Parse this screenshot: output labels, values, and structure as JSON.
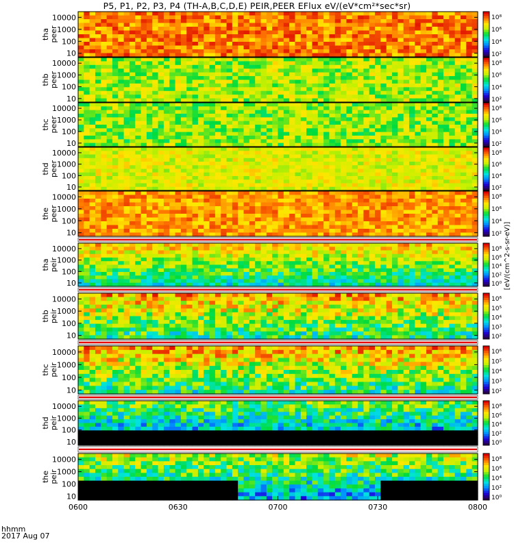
{
  "title": "P5, P1, P2, P3, P4 (TH-A,B,C,D,E) PEIR,PEER EFlux eV/(eV*cm²*sec*sr)",
  "footer": {
    "time_format": "hhmm",
    "date": "2017 Aug 07"
  },
  "colorbar_label": "[eV/(cm^2-s-sr-eV)]",
  "chart_data": {
    "type": "heatmap",
    "x_ticks": [
      "0600",
      "0630",
      "0700",
      "0730",
      "0800"
    ],
    "x_range": [
      "0600",
      "0800"
    ],
    "y_scale": "log",
    "y_ticks": [
      "10",
      "100",
      "1000",
      "10000"
    ],
    "panels": [
      {
        "name": "tha peer",
        "label_lines": [
          "tha",
          "peer"
        ],
        "cbar_ticks": [
          "10⁸",
          "10⁶",
          "10⁴",
          "10²"
        ],
        "base": 0.85,
        "noise": 0.12
      },
      {
        "name": "thb peer",
        "label_lines": [
          "thb",
          "peer"
        ],
        "cbar_ticks": [
          "10⁸",
          "10⁶",
          "10⁴",
          "10²"
        ],
        "base": 0.62,
        "noise": 0.14
      },
      {
        "name": "thc peer",
        "label_lines": [
          "thc",
          "peer"
        ],
        "cbar_ticks": [
          "10⁸",
          "10⁶",
          "10⁴",
          "10²"
        ],
        "base": 0.6,
        "noise": 0.14
      },
      {
        "name": "thd peer",
        "label_lines": [
          "thd",
          "peer"
        ],
        "cbar_ticks": [
          "10⁸",
          "10⁶",
          "10⁴",
          "10²"
        ],
        "base": 0.68,
        "noise": 0.1
      },
      {
        "name": "the peer",
        "label_lines": [
          "the",
          "peer"
        ],
        "cbar_ticks": [
          "10⁸",
          "10⁶",
          "10⁴",
          "10²"
        ],
        "base": 0.82,
        "noise": 0.1
      },
      {
        "name": "tha peir",
        "label_lines": [
          "tha",
          "peir"
        ],
        "cbar_ticks": [
          "10⁸",
          "10⁶",
          "10⁴",
          "10²",
          "10⁰"
        ],
        "base": 0.62,
        "noise": 0.14
      },
      {
        "name": "thb peir",
        "label_lines": [
          "thb",
          "peir"
        ],
        "cbar_ticks": [
          "10⁶",
          "10⁵",
          "10⁴",
          "10³",
          "10²"
        ],
        "base": 0.66,
        "noise": 0.18
      },
      {
        "name": "thc peir",
        "label_lines": [
          "thc",
          "peir"
        ],
        "cbar_ticks": [
          "10⁶",
          "10⁵",
          "10⁴",
          "10³",
          "10²"
        ],
        "base": 0.66,
        "noise": 0.18
      },
      {
        "name": "thd peir",
        "label_lines": [
          "thd",
          "peir"
        ],
        "cbar_ticks": [
          "10⁸",
          "10⁶",
          "10⁴",
          "10²",
          "10⁰"
        ],
        "base": 0.42,
        "noise": 0.18
      },
      {
        "name": "the peir",
        "label_lines": [
          "the",
          "peir"
        ],
        "cbar_ticks": [
          "10⁸",
          "10⁶",
          "10⁴",
          "10²",
          "10⁰"
        ],
        "base": 0.5,
        "noise": 0.18
      }
    ]
  }
}
